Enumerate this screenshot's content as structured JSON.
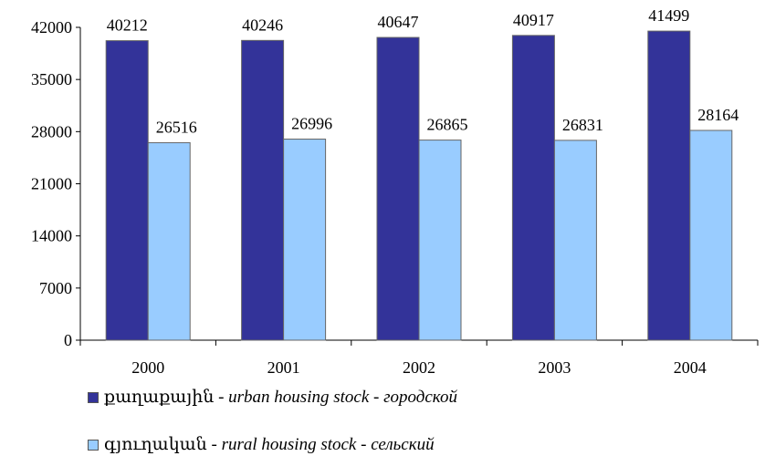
{
  "chart_data": {
    "type": "bar",
    "categories": [
      "2000",
      "2001",
      "2002",
      "2003",
      "2004"
    ],
    "series": [
      {
        "name": "urban",
        "values": [
          40212,
          40246,
          40647,
          40917,
          41499
        ],
        "color": "#333399"
      },
      {
        "name": "rural",
        "values": [
          26516,
          26996,
          26865,
          26831,
          28164
        ],
        "color": "#99ccff"
      }
    ],
    "ylim": [
      0,
      42000
    ],
    "yticks": [
      "0",
      "7000",
      "14000",
      "21000",
      "28000",
      "35000",
      "42000"
    ],
    "grid": false,
    "legend_position": "bottom-left",
    "title": "",
    "xlabel": "",
    "ylabel": ""
  },
  "legend": [
    {
      "native": "քաղաքային",
      "sep1": " - ",
      "english": "urban housing stock",
      "sep2": " - ",
      "russian": "городской"
    },
    {
      "native": "գյուղական",
      "sep1": " - ",
      "english": "rural housing stock",
      "sep2": " - ",
      "russian": "сельский"
    }
  ]
}
